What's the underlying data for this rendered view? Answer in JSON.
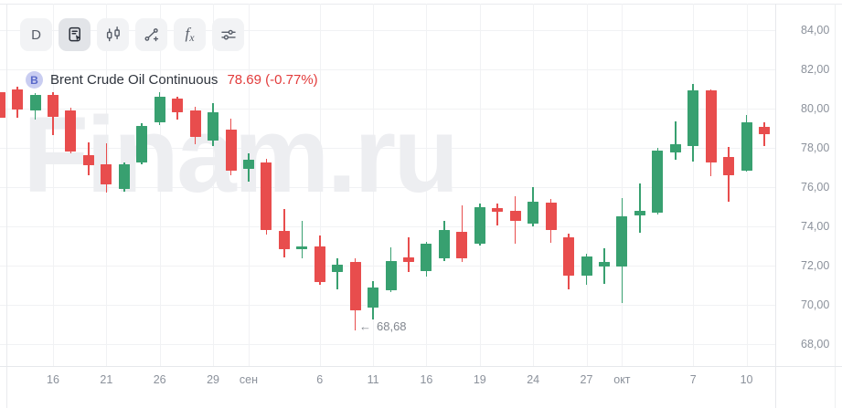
{
  "toolbar": {
    "buttons": [
      {
        "id": "timeframe",
        "label": "D",
        "selected": false
      },
      {
        "id": "chart-type",
        "icon": "document-pointer-icon",
        "selected": true
      },
      {
        "id": "candle-style",
        "icon": "candlestick-icon",
        "selected": false
      },
      {
        "id": "drawing-tools",
        "icon": "trend-line-plus-icon",
        "selected": false
      },
      {
        "id": "indicators",
        "label_f": "f",
        "label_x": "x",
        "selected": false
      },
      {
        "id": "settings",
        "icon": "sliders-icon",
        "selected": false
      }
    ]
  },
  "instrument": {
    "badge": "B",
    "name": "Brent Crude Oil Continuous",
    "price": "78.69",
    "change": "(-0.77%)"
  },
  "watermark": "Finam.ru",
  "annotation": {
    "arrow": "←",
    "text": "68,68"
  },
  "colors": {
    "up": "#38a070",
    "down": "#e84d4d",
    "quote_red": "#e23b3b",
    "grid": "#f1f2f4",
    "axis_text": "#8b919b",
    "watermark": "#edeef1",
    "badge_bg": "#c9cdf1",
    "badge_text": "#5868c9"
  },
  "chart_data": {
    "type": "candlestick",
    "title": "Brent Crude Oil Continuous, D",
    "ylim": [
      66.9,
      85.3
    ],
    "grid": true,
    "y_ticks": [
      {
        "price": 84,
        "label": "84,00"
      },
      {
        "price": 82,
        "label": "82,00"
      },
      {
        "price": 80,
        "label": "80,00"
      },
      {
        "price": 78,
        "label": "78,00"
      },
      {
        "price": 76,
        "label": "76,00"
      },
      {
        "price": 74,
        "label": "74,00"
      },
      {
        "price": 72,
        "label": "72,00"
      },
      {
        "price": 70,
        "label": "70,00"
      },
      {
        "price": 68,
        "label": "68,00"
      }
    ],
    "x_labels": [
      {
        "text": "16",
        "candle_index": 3
      },
      {
        "text": "21",
        "candle_index": 6
      },
      {
        "text": "26",
        "candle_index": 9
      },
      {
        "text": "29",
        "candle_index": 12
      },
      {
        "text": "сен",
        "candle_index": 14
      },
      {
        "text": "6",
        "candle_index": 18
      },
      {
        "text": "11",
        "candle_index": 21
      },
      {
        "text": "16",
        "candle_index": 24
      },
      {
        "text": "19",
        "candle_index": 27
      },
      {
        "text": "24",
        "candle_index": 30
      },
      {
        "text": "27",
        "candle_index": 33
      },
      {
        "text": "окт",
        "candle_index": 35
      },
      {
        "text": "7",
        "candle_index": 39
      },
      {
        "text": "10",
        "candle_index": 42
      }
    ],
    "candles": [
      {
        "date": "13 авг",
        "o": 80.85,
        "h": 80.95,
        "l": 79.5,
        "c": 79.55
      },
      {
        "date": "14 авг",
        "o": 81.0,
        "h": 81.1,
        "l": 79.55,
        "c": 79.95
      },
      {
        "date": "15 авг",
        "o": 79.9,
        "h": 80.78,
        "l": 79.45,
        "c": 80.7
      },
      {
        "date": "16 авг",
        "o": 80.68,
        "h": 80.82,
        "l": 78.64,
        "c": 79.6
      },
      {
        "date": "19 авг",
        "o": 79.9,
        "h": 80.05,
        "l": 77.7,
        "c": 77.8
      },
      {
        "date": "20 авг",
        "o": 77.63,
        "h": 78.3,
        "l": 76.62,
        "c": 77.13
      },
      {
        "date": "21 авг",
        "o": 77.16,
        "h": 78.25,
        "l": 75.7,
        "c": 76.15
      },
      {
        "date": "22 авг",
        "o": 75.92,
        "h": 77.25,
        "l": 75.75,
        "c": 77.16
      },
      {
        "date": "23 авг",
        "o": 77.24,
        "h": 79.27,
        "l": 77.15,
        "c": 79.1
      },
      {
        "date": "26 авг",
        "o": 79.3,
        "h": 80.85,
        "l": 79.15,
        "c": 80.62
      },
      {
        "date": "27 авг",
        "o": 80.5,
        "h": 80.62,
        "l": 79.45,
        "c": 79.82
      },
      {
        "date": "28 авг",
        "o": 79.9,
        "h": 80.1,
        "l": 78.2,
        "c": 78.57
      },
      {
        "date": "29 авг",
        "o": 78.35,
        "h": 80.3,
        "l": 78.1,
        "c": 79.8
      },
      {
        "date": "30 авг",
        "o": 78.95,
        "h": 79.5,
        "l": 76.6,
        "c": 76.85
      },
      {
        "date": "2 сен",
        "o": 76.93,
        "h": 77.7,
        "l": 76.3,
        "c": 77.4
      },
      {
        "date": "3 сен",
        "o": 77.24,
        "h": 77.42,
        "l": 73.6,
        "c": 73.83
      },
      {
        "date": "4 сен",
        "o": 73.75,
        "h": 74.9,
        "l": 72.43,
        "c": 72.82
      },
      {
        "date": "5 сен",
        "o": 72.85,
        "h": 74.3,
        "l": 72.36,
        "c": 72.98
      },
      {
        "date": "6 сен",
        "o": 73.0,
        "h": 73.55,
        "l": 71.0,
        "c": 71.15
      },
      {
        "date": "9 сен",
        "o": 71.66,
        "h": 72.36,
        "l": 70.8,
        "c": 72.05
      },
      {
        "date": "10 сен",
        "o": 72.2,
        "h": 72.36,
        "l": 68.68,
        "c": 69.72
      },
      {
        "date": "11 сен",
        "o": 69.85,
        "h": 71.2,
        "l": 69.26,
        "c": 70.88
      },
      {
        "date": "12 сен",
        "o": 70.76,
        "h": 72.94,
        "l": 70.65,
        "c": 72.24
      },
      {
        "date": "13 сен",
        "o": 72.43,
        "h": 73.44,
        "l": 71.66,
        "c": 72.2
      },
      {
        "date": "16 сен",
        "o": 71.73,
        "h": 73.2,
        "l": 71.45,
        "c": 73.1
      },
      {
        "date": "17 сен",
        "o": 72.36,
        "h": 74.3,
        "l": 72.23,
        "c": 73.83
      },
      {
        "date": "18 сен",
        "o": 73.72,
        "h": 75.07,
        "l": 72.2,
        "c": 72.36
      },
      {
        "date": "19 сен",
        "o": 73.13,
        "h": 75.18,
        "l": 73.0,
        "c": 74.99
      },
      {
        "date": "20 сен",
        "o": 74.92,
        "h": 75.15,
        "l": 74.06,
        "c": 74.76
      },
      {
        "date": "23 сен",
        "o": 74.8,
        "h": 75.53,
        "l": 73.1,
        "c": 74.29
      },
      {
        "date": "24 сен",
        "o": 74.14,
        "h": 76.0,
        "l": 73.99,
        "c": 75.27
      },
      {
        "date": "25 сен",
        "o": 75.22,
        "h": 75.4,
        "l": 73.17,
        "c": 73.83
      },
      {
        "date": "26 сен",
        "o": 73.44,
        "h": 73.62,
        "l": 70.8,
        "c": 71.5
      },
      {
        "date": "27 сен",
        "o": 71.5,
        "h": 72.6,
        "l": 71.04,
        "c": 72.48
      },
      {
        "date": "30 сен",
        "o": 71.97,
        "h": 72.9,
        "l": 71.08,
        "c": 72.17
      },
      {
        "date": "1 окт",
        "o": 71.97,
        "h": 75.46,
        "l": 70.1,
        "c": 74.53
      },
      {
        "date": "2 окт",
        "o": 74.57,
        "h": 76.19,
        "l": 73.67,
        "c": 74.79
      },
      {
        "date": "3 окт",
        "o": 74.68,
        "h": 78.0,
        "l": 74.6,
        "c": 77.86
      },
      {
        "date": "4 окт",
        "o": 77.78,
        "h": 79.33,
        "l": 77.4,
        "c": 78.2
      },
      {
        "date": "7 окт",
        "o": 78.09,
        "h": 81.24,
        "l": 77.32,
        "c": 80.93
      },
      {
        "date": "8 окт",
        "o": 80.93,
        "h": 81.0,
        "l": 76.54,
        "c": 77.24
      },
      {
        "date": "9 окт",
        "o": 77.52,
        "h": 78.05,
        "l": 75.26,
        "c": 76.62
      },
      {
        "date": "10 окт",
        "o": 76.85,
        "h": 79.69,
        "l": 76.77,
        "c": 79.29
      },
      {
        "date": "11 окт",
        "o": 79.06,
        "h": 79.29,
        "l": 78.09,
        "c": 78.69
      }
    ],
    "annotations": [
      {
        "type": "low-marker",
        "candle_index": 20,
        "value": 68.68,
        "label": "68,68"
      }
    ],
    "legend_position": "top-left"
  }
}
